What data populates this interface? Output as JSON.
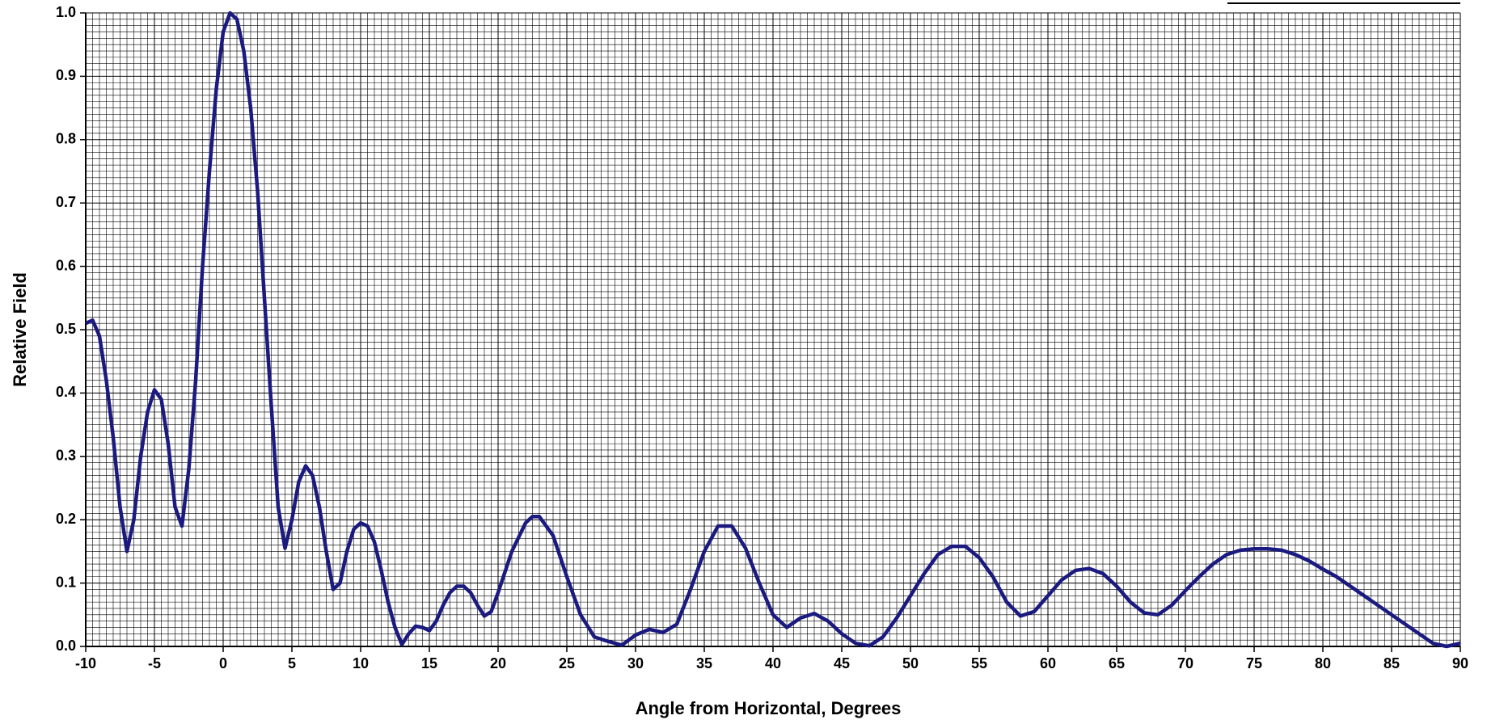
{
  "chart_data": {
    "type": "line",
    "x_label": "Angle from Horizontal, Degrees",
    "y_label": "Relative Field",
    "x": [
      -10,
      -9.5,
      -9,
      -8.5,
      -8,
      -7.5,
      -7,
      -6.5,
      -6,
      -5.5,
      -5,
      -4.5,
      -4,
      -3.5,
      -3,
      -2.5,
      -2,
      -1.5,
      -1,
      -0.5,
      0,
      0.5,
      1,
      1.5,
      2,
      2.5,
      3,
      3.5,
      4,
      4.5,
      5,
      5.5,
      6,
      6.5,
      7,
      7.5,
      8,
      8.5,
      9,
      9.5,
      10,
      10.5,
      11,
      11.5,
      12,
      12.5,
      13,
      13.5,
      14,
      14.5,
      15,
      15.5,
      16,
      16.5,
      17,
      17.5,
      18,
      18.5,
      19,
      19.5,
      20,
      21,
      22,
      22.5,
      23,
      24,
      25,
      26,
      27,
      28,
      29,
      30,
      31,
      32,
      33,
      34,
      35,
      36,
      37,
      38,
      39,
      40,
      41,
      42,
      43,
      44,
      45,
      46,
      47,
      48,
      49,
      50,
      51,
      52,
      53,
      54,
      55,
      56,
      57,
      58,
      59,
      60,
      61,
      62,
      63,
      64,
      65,
      66,
      67,
      68,
      69,
      70,
      71,
      72,
      73,
      74,
      75,
      76,
      77,
      78,
      79,
      80,
      81,
      82,
      83,
      84,
      85,
      86,
      87,
      88,
      89,
      90
    ],
    "series": [
      {
        "color": "#1a1a80",
        "values": [
          0.51,
          0.515,
          0.49,
          0.42,
          0.33,
          0.22,
          0.15,
          0.2,
          0.3,
          0.37,
          0.405,
          0.39,
          0.32,
          0.22,
          0.19,
          0.28,
          0.42,
          0.6,
          0.75,
          0.88,
          0.97,
          1.0,
          0.99,
          0.94,
          0.85,
          0.72,
          0.55,
          0.38,
          0.22,
          0.155,
          0.2,
          0.26,
          0.285,
          0.27,
          0.22,
          0.15,
          0.09,
          0.1,
          0.15,
          0.185,
          0.195,
          0.19,
          0.165,
          0.12,
          0.07,
          0.03,
          0.003,
          0.02,
          0.032,
          0.03,
          0.025,
          0.04,
          0.065,
          0.085,
          0.095,
          0.095,
          0.085,
          0.065,
          0.048,
          0.055,
          0.085,
          0.15,
          0.195,
          0.205,
          0.205,
          0.175,
          0.11,
          0.05,
          0.015,
          0.008,
          0.002,
          0.018,
          0.027,
          0.022,
          0.035,
          0.09,
          0.15,
          0.19,
          0.19,
          0.155,
          0.1,
          0.05,
          0.03,
          0.045,
          0.052,
          0.04,
          0.02,
          0.005,
          0.001,
          0.015,
          0.045,
          0.08,
          0.115,
          0.145,
          0.158,
          0.158,
          0.14,
          0.11,
          0.07,
          0.048,
          0.055,
          0.08,
          0.105,
          0.12,
          0.123,
          0.115,
          0.095,
          0.07,
          0.053,
          0.05,
          0.065,
          0.088,
          0.11,
          0.13,
          0.145,
          0.152,
          0.154,
          0.154,
          0.152,
          0.145,
          0.135,
          0.122,
          0.11,
          0.095,
          0.08,
          0.065,
          0.05,
          0.035,
          0.02,
          0.005,
          0.0,
          0.005
        ]
      }
    ],
    "xlim": [
      -10,
      90
    ],
    "xticks": [
      -10,
      -5,
      0,
      5,
      10,
      15,
      20,
      25,
      30,
      35,
      40,
      45,
      50,
      55,
      60,
      65,
      70,
      75,
      80,
      85,
      90
    ],
    "ylim": [
      0,
      1
    ],
    "yticks": [
      {
        "value": 0,
        "label": "0.0"
      },
      0.1,
      0.2,
      0.3,
      0.4,
      0.5,
      0.6,
      0.7,
      0.8,
      0.9,
      {
        "value": 1,
        "label": "1.0"
      }
    ],
    "grid": true
  }
}
